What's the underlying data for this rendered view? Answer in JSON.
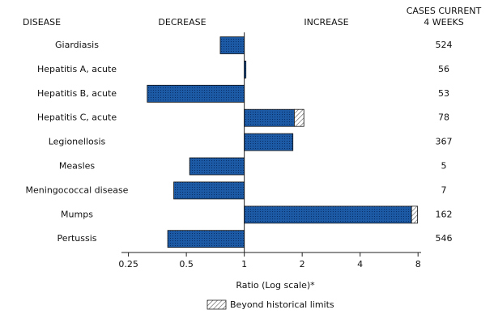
{
  "chart_data": {
    "type": "bar",
    "orientation": "horizontal",
    "log_scale": true,
    "headers": {
      "disease": "DISEASE",
      "decrease": "DECREASE",
      "increase": "INCREASE",
      "cases": [
        "CASES CURRENT",
        "4 WEEKS"
      ]
    },
    "categories": [
      "Giardiasis",
      "Hepatitis A, acute",
      "Hepatitis B, acute",
      "Hepatitis C, acute",
      "Legionellosis",
      "Measles",
      "Meningococcal disease",
      "Mumps",
      "Pertussis"
    ],
    "values": [
      0.75,
      1.02,
      0.313,
      2.04,
      1.79,
      0.52,
      0.43,
      7.95,
      0.4
    ],
    "limits": [
      null,
      null,
      null,
      1.82,
      null,
      null,
      null,
      7.4,
      null
    ],
    "cases": [
      524,
      56,
      53,
      78,
      367,
      5,
      7,
      162,
      546
    ],
    "color": "#1d5aa6",
    "xlim": [
      0.23,
      8.3
    ],
    "xticks": [
      0.25,
      0.5,
      1,
      2,
      4,
      8
    ],
    "xlabel": "Ratio (Log scale)*",
    "legend_label": "Beyond historical limits"
  }
}
